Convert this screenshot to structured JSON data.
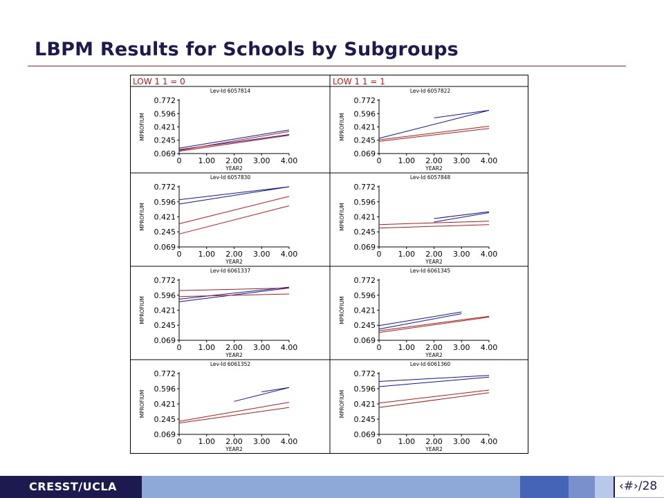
{
  "slide": {
    "title": "LBPM Results for Schools by Subgroups",
    "footer_brand": "CRESST/UCLA",
    "page_number": "‹#›/28"
  },
  "colors": {
    "title": "#1c1a4e",
    "rule": "#8b2a2a",
    "series_blue": "#1010a0",
    "series_red": "#b01818",
    "footer_navy": "#1c1a4e"
  },
  "chart_data": {
    "type": "line",
    "column_headers": [
      "LOW 1 1 = 0",
      "LOW 1 1 = 1"
    ],
    "xlabel": "YEAR2",
    "ylabel": "MPROFIUM",
    "xlim": [
      0,
      4
    ],
    "ylim": [
      0.069,
      0.772
    ],
    "x_ticks": [
      "0",
      "1.00",
      "2.00",
      "3.00",
      "4.00"
    ],
    "y_ticks": [
      "0.772",
      "0.596",
      "0.421",
      "0.245",
      "0.069"
    ],
    "panels": [
      {
        "title": "Lev-Id 6057814",
        "series": [
          {
            "color": "blue",
            "x": [
              0,
              4
            ],
            "y": [
              0.14,
              0.38
            ]
          },
          {
            "color": "blue",
            "x": [
              0,
              4
            ],
            "y": [
              0.12,
              0.32
            ]
          },
          {
            "color": "red",
            "x": [
              0,
              4
            ],
            "y": [
              0.11,
              0.36
            ]
          },
          {
            "color": "red",
            "x": [
              0,
              4
            ],
            "y": [
              0.1,
              0.31
            ]
          }
        ]
      },
      {
        "title": "Lev-Id 6057822",
        "series": [
          {
            "color": "blue",
            "x": [
              2,
              4
            ],
            "y": [
              0.54,
              0.64
            ]
          },
          {
            "color": "blue",
            "x": [
              0,
              4
            ],
            "y": [
              0.27,
              0.64
            ]
          },
          {
            "color": "red",
            "x": [
              0,
              4
            ],
            "y": [
              0.25,
              0.43
            ]
          },
          {
            "color": "red",
            "x": [
              0,
              4
            ],
            "y": [
              0.23,
              0.4
            ]
          }
        ]
      },
      {
        "title": "Lev-Id 6057830",
        "series": [
          {
            "color": "blue",
            "x": [
              0,
              4
            ],
            "y": [
              0.62,
              0.772
            ]
          },
          {
            "color": "blue",
            "x": [
              0,
              4
            ],
            "y": [
              0.57,
              0.772
            ]
          },
          {
            "color": "red",
            "x": [
              0,
              4
            ],
            "y": [
              0.34,
              0.66
            ]
          },
          {
            "color": "red",
            "x": [
              0,
              4
            ],
            "y": [
              0.22,
              0.55
            ]
          }
        ]
      },
      {
        "title": "Lev-Id 6057848",
        "series": [
          {
            "color": "blue",
            "x": [
              2,
              4
            ],
            "y": [
              0.4,
              0.48
            ]
          },
          {
            "color": "blue",
            "x": [
              2,
              4
            ],
            "y": [
              0.36,
              0.47
            ]
          },
          {
            "color": "red",
            "x": [
              0,
              4
            ],
            "y": [
              0.33,
              0.37
            ]
          },
          {
            "color": "red",
            "x": [
              0,
              4
            ],
            "y": [
              0.29,
              0.33
            ]
          }
        ]
      },
      {
        "title": "Lev-Id 6061337",
        "series": [
          {
            "color": "blue",
            "x": [
              0,
              4
            ],
            "y": [
              0.55,
              0.69
            ]
          },
          {
            "color": "blue",
            "x": [
              0,
              4
            ],
            "y": [
              0.52,
              0.68
            ]
          },
          {
            "color": "red",
            "x": [
              0,
              4
            ],
            "y": [
              0.65,
              0.68
            ]
          },
          {
            "color": "red",
            "x": [
              0,
              4
            ],
            "y": [
              0.58,
              0.61
            ]
          }
        ]
      },
      {
        "title": "Lev-Id 6061345",
        "series": [
          {
            "color": "blue",
            "x": [
              0,
              3
            ],
            "y": [
              0.24,
              0.4
            ]
          },
          {
            "color": "blue",
            "x": [
              0,
              3
            ],
            "y": [
              0.2,
              0.38
            ]
          },
          {
            "color": "red",
            "x": [
              0,
              4
            ],
            "y": [
              0.18,
              0.35
            ]
          },
          {
            "color": "red",
            "x": [
              0,
              4
            ],
            "y": [
              0.16,
              0.34
            ]
          }
        ]
      },
      {
        "title": "Lev-Id 6061352",
        "series": [
          {
            "color": "blue",
            "x": [
              2,
              4
            ],
            "y": [
              0.45,
              0.61
            ]
          },
          {
            "color": "blue",
            "x": [
              3,
              4
            ],
            "y": [
              0.56,
              0.61
            ]
          },
          {
            "color": "red",
            "x": [
              0,
              4
            ],
            "y": [
              0.22,
              0.44
            ]
          },
          {
            "color": "red",
            "x": [
              0,
              4
            ],
            "y": [
              0.2,
              0.38
            ]
          }
        ]
      },
      {
        "title": "Lev-Id 6061360",
        "series": [
          {
            "color": "blue",
            "x": [
              0,
              4
            ],
            "y": [
              0.68,
              0.75
            ]
          },
          {
            "color": "blue",
            "x": [
              0,
              4
            ],
            "y": [
              0.62,
              0.73
            ]
          },
          {
            "color": "red",
            "x": [
              0,
              4
            ],
            "y": [
              0.43,
              0.58
            ]
          },
          {
            "color": "red",
            "x": [
              0,
              4
            ],
            "y": [
              0.38,
              0.55
            ]
          }
        ]
      }
    ]
  }
}
